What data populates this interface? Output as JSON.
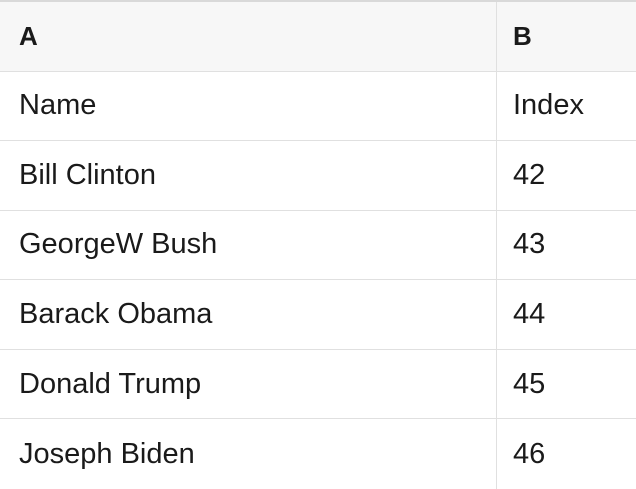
{
  "columns": [
    {
      "label": "A"
    },
    {
      "label": "B"
    }
  ],
  "rows": [
    [
      "Name",
      "Index"
    ],
    [
      "Bill Clinton",
      "42"
    ],
    [
      "GeorgeW Bush",
      "43"
    ],
    [
      "Barack Obama",
      "44"
    ],
    [
      "Donald Trump",
      "45"
    ],
    [
      "Joseph Biden",
      "46"
    ]
  ],
  "colors": {
    "header_bg": "#f7f7f7",
    "border": "#e0e0e0",
    "border_top": "#d9d9d9",
    "text": "#1a1a1a",
    "cell_bg": "#ffffff"
  }
}
